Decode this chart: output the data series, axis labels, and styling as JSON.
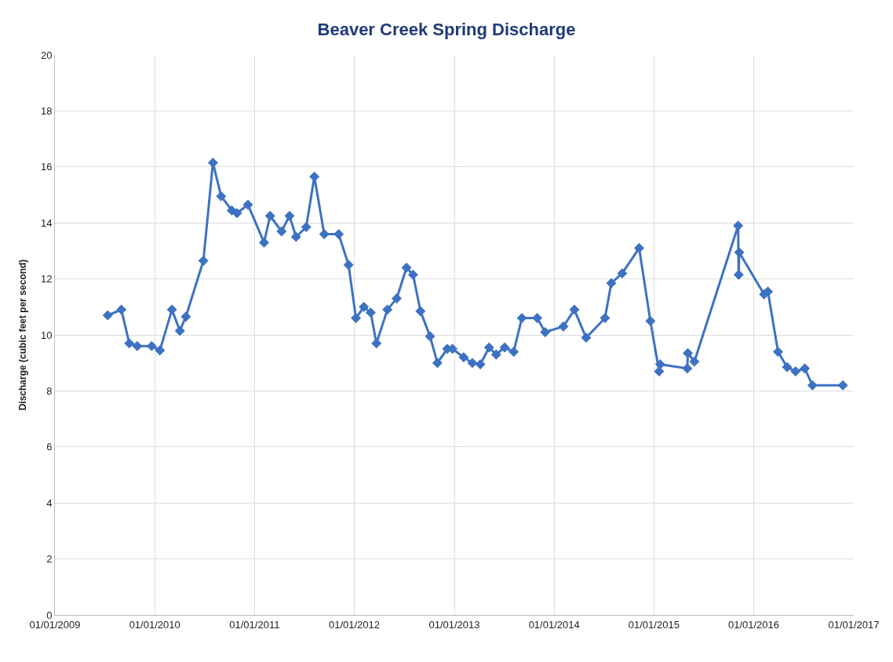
{
  "chart_data": {
    "type": "line",
    "title": "Beaver Creek Spring Discharge",
    "ylabel": "Discharge (cubic feet per second)",
    "x": [
      "2009-07-13",
      "2009-09-01",
      "2009-09-30",
      "2009-10-29",
      "2009-12-21",
      "2010-01-20",
      "2010-03-05",
      "2010-04-03",
      "2010-04-25",
      "2010-06-28",
      "2010-08-02",
      "2010-09-01",
      "2010-10-10",
      "2010-10-29",
      "2010-12-08",
      "2011-02-05",
      "2011-02-27",
      "2011-04-10",
      "2011-05-09",
      "2011-06-02",
      "2011-07-09",
      "2011-08-08",
      "2011-09-13",
      "2011-11-05",
      "2011-12-11",
      "2012-01-07",
      "2012-02-05",
      "2012-03-01",
      "2012-03-22",
      "2012-05-01",
      "2012-06-04",
      "2012-07-10",
      "2012-08-03",
      "2012-08-30",
      "2012-10-04",
      "2012-10-31",
      "2012-12-06",
      "2012-12-25",
      "2013-02-04",
      "2013-03-08",
      "2013-04-06",
      "2013-05-08",
      "2013-06-03",
      "2013-07-04",
      "2013-08-06",
      "2013-09-05",
      "2013-10-31",
      "2013-11-29",
      "2014-02-04",
      "2014-03-16",
      "2014-04-28",
      "2014-07-06",
      "2014-07-29",
      "2014-09-07",
      "2014-11-08",
      "2014-12-19",
      "2015-01-20",
      "2015-01-24",
      "2015-05-03",
      "2015-05-05",
      "2015-05-29",
      "2015-11-05",
      "2015-11-07",
      "2015-11-09",
      "2016-02-08",
      "2016-02-22",
      "2016-03-30",
      "2016-05-02",
      "2016-06-02",
      "2016-07-06",
      "2016-08-03",
      "2016-11-22"
    ],
    "series": [
      {
        "color": "#3d72c2",
        "values": [
          10.7,
          10.9,
          9.7,
          9.6,
          9.6,
          9.45,
          10.9,
          10.15,
          10.65,
          12.65,
          16.15,
          14.95,
          14.45,
          14.35,
          14.65,
          13.3,
          14.25,
          13.7,
          14.25,
          13.5,
          13.85,
          15.65,
          13.6,
          13.6,
          12.5,
          10.6,
          11.0,
          10.8,
          9.7,
          10.9,
          11.3,
          12.4,
          12.15,
          10.85,
          9.95,
          9.0,
          9.5,
          9.5,
          9.2,
          9.0,
          8.95,
          9.55,
          9.3,
          9.55,
          9.4,
          10.6,
          10.6,
          10.1,
          10.3,
          10.9,
          9.9,
          10.6,
          11.85,
          12.2,
          13.1,
          10.5,
          8.7,
          8.95,
          8.8,
          9.35,
          9.05,
          13.9,
          12.15,
          12.95,
          11.45,
          11.55,
          9.4,
          8.85,
          8.7,
          8.8,
          8.2,
          8.2
        ]
      }
    ],
    "xlim": [
      "2009-01-01",
      "2017-01-01"
    ],
    "xticks": [
      {
        "value": "2009-01-01",
        "label": "01/01/2009"
      },
      {
        "value": "2010-01-01",
        "label": "01/01/2010"
      },
      {
        "value": "2011-01-01",
        "label": "01/01/2011"
      },
      {
        "value": "2012-01-01",
        "label": "01/01/2012"
      },
      {
        "value": "2013-01-01",
        "label": "01/01/2013"
      },
      {
        "value": "2014-01-01",
        "label": "01/01/2014"
      },
      {
        "value": "2015-01-01",
        "label": "01/01/2015"
      },
      {
        "value": "2016-01-01",
        "label": "01/01/2016"
      },
      {
        "value": "2017-01-01",
        "label": "01/01/2017"
      }
    ],
    "ylim": [
      0,
      20
    ],
    "yticks": [
      0,
      2,
      4,
      6,
      8,
      10,
      12,
      14,
      16,
      18,
      20
    ],
    "grid": true,
    "marker": "diamond",
    "line_style": "solid"
  }
}
